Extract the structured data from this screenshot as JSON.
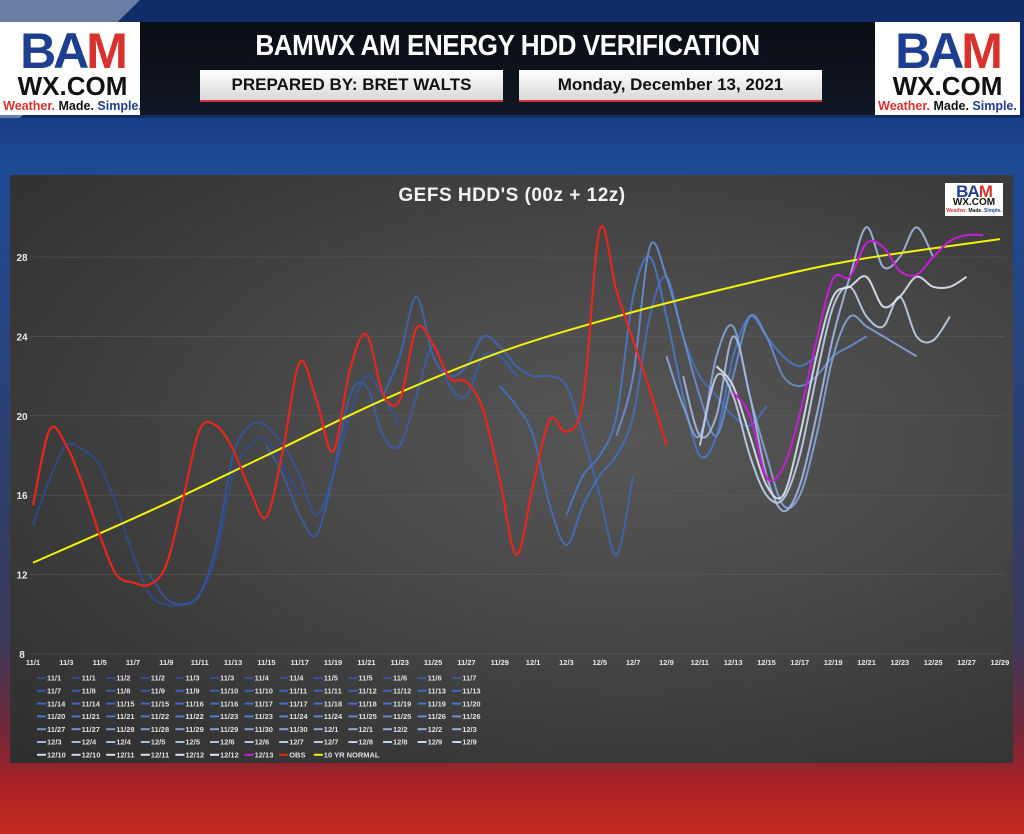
{
  "header": {
    "title": "BAMWX AM ENERGY HDD VERIFICATION",
    "prepared_by": "PREPARED BY: BRET WALTS",
    "date": "Monday, December 13, 2021"
  },
  "logo": {
    "bam_b": "BA",
    "bam_m": "M",
    "wx": "WX.COM",
    "tag_1": "Weather.",
    "tag_2": " Made. ",
    "tag_3": "Simple."
  },
  "colors": {
    "obs": "#e8261c",
    "normal": "#f2f20a",
    "latest_run": "#c21fd6",
    "ensemble_dark": "#2d4c8e",
    "ensemble_mid": "#4a78c8",
    "ensemble_light": "#dfe5f2"
  },
  "chart_data": {
    "type": "line",
    "title": "GEFS HDD'S (00z + 12z)",
    "ylim": [
      8,
      30
    ],
    "yticks": [
      8,
      12,
      16,
      20,
      24,
      28
    ],
    "grid": true,
    "legend_position": "bottom",
    "xticks": [
      "11/1",
      "11/3",
      "11/5",
      "11/7",
      "11/9",
      "11/11",
      "11/13",
      "11/15",
      "11/17",
      "11/19",
      "11/21",
      "11/23",
      "11/25",
      "11/27",
      "11/29",
      "12/1",
      "12/3",
      "12/5",
      "12/7",
      "12/9",
      "12/11",
      "12/13",
      "12/15",
      "12/17",
      "12/19",
      "12/21",
      "12/23",
      "12/25",
      "12/27",
      "12/29"
    ],
    "obs": {
      "name": "OBS",
      "start": "11/1",
      "values": [
        15.5,
        19.3,
        18.5,
        16.5,
        14,
        12,
        11.6,
        11.5,
        12.5,
        15.8,
        19.3,
        19.5,
        18.3,
        16.3,
        14.9,
        18.3,
        22.7,
        20.8,
        18.2,
        22.3,
        24.1,
        21.1,
        20.8,
        24.4,
        23.6,
        21.9,
        21.7,
        20.3,
        16.8,
        13,
        16.5,
        19.8,
        19.2,
        20.8,
        29.4,
        26.3,
        23.8,
        21.3,
        18.5
      ]
    },
    "normal": {
      "name": "10 YR NORMAL",
      "points": [
        [
          "11/1",
          12.6
        ],
        [
          "11/8",
          15.2
        ],
        [
          "11/15",
          18
        ],
        [
          "11/22",
          20.8
        ],
        [
          "11/29",
          23.2
        ],
        [
          "12/6",
          25
        ],
        [
          "12/13",
          26.5
        ],
        [
          "12/20",
          27.8
        ],
        [
          "12/29",
          28.9
        ]
      ]
    },
    "latest": {
      "name": "12/13",
      "start": "12/13",
      "values": [
        21.2,
        20,
        16.9,
        17.4,
        20.1,
        23.8,
        26.9,
        27,
        28.7,
        28.5,
        27.3,
        27.1,
        28,
        28.8,
        29.1,
        29.1
      ]
    },
    "ensembles": [
      {
        "name": "11/1",
        "start": "11/1",
        "values": [
          14.5,
          16.8,
          18.5,
          18.3,
          17.5,
          15.5,
          13,
          11,
          10.5,
          10.5,
          11,
          13,
          17,
          18.5,
          18.8,
          17.5,
          16
        ]
      },
      {
        "name": "11/8",
        "start": "11/8",
        "values": [
          12,
          10.8,
          10.5,
          11,
          13.5,
          18,
          19.5,
          19.5,
          18.5,
          17,
          15,
          17,
          20,
          22,
          21,
          19.5
        ]
      },
      {
        "name": "11/15",
        "start": "11/15",
        "values": [
          18.5,
          17,
          15,
          14,
          17,
          21,
          21.5,
          19,
          18.5,
          21,
          23.5,
          21.5,
          21,
          23,
          23,
          22
        ]
      },
      {
        "name": "11/22",
        "start": "11/22",
        "values": [
          21,
          23,
          26,
          23,
          22,
          22.5,
          24,
          23.5,
          22.5,
          22,
          22,
          21.5,
          19,
          16,
          13,
          17
        ]
      },
      {
        "name": "11/29",
        "start": "11/29",
        "values": [
          21.5,
          20.5,
          19,
          15.5,
          13.5,
          15.5,
          17,
          18,
          20,
          25,
          27,
          24,
          22,
          21,
          20,
          19.5,
          20.5
        ]
      },
      {
        "name": "12/3",
        "start": "12/3",
        "values": [
          15,
          17,
          18,
          20,
          26,
          28,
          25,
          21,
          18,
          19,
          23,
          25,
          24,
          23,
          22.5,
          23
        ]
      },
      {
        "name": "12/6",
        "start": "12/6",
        "values": [
          19,
          22,
          28.5,
          27,
          24,
          21,
          19,
          22,
          25,
          24,
          22,
          21.5,
          22,
          23,
          23.5,
          24
        ]
      },
      {
        "name": "12/9",
        "start": "12/9",
        "values": [
          23,
          20.5,
          19,
          23,
          24.5,
          21,
          18,
          15.5,
          16,
          19,
          23,
          25,
          24.5,
          24,
          23.5,
          23
        ]
      },
      {
        "name": "12/10",
        "start": "12/10",
        "values": [
          22,
          19,
          20,
          24,
          21,
          17,
          15.2,
          16.5,
          20,
          24,
          27,
          29.5,
          27.5,
          28,
          29.5,
          28
        ]
      },
      {
        "name": "12/11",
        "start": "12/11",
        "values": [
          18.5,
          22,
          21,
          18,
          16,
          15.8,
          18,
          22,
          25.5,
          26.5,
          25,
          24.5,
          26,
          24,
          23.8,
          25
        ]
      },
      {
        "name": "12/12",
        "start": "12/12",
        "values": [
          22.5,
          21.5,
          19,
          16.5,
          16,
          19,
          23,
          26,
          26.5,
          27,
          25.5,
          26,
          27,
          26.5,
          26.5,
          27
        ]
      }
    ],
    "legend": [
      "11/1",
      "11/1",
      "11/2",
      "11/2",
      "11/3",
      "11/3",
      "11/4",
      "11/4",
      "11/5",
      "11/5",
      "11/6",
      "11/6",
      "11/7",
      "11/7",
      "11/8",
      "11/8",
      "11/9",
      "11/9",
      "11/10",
      "11/10",
      "11/11",
      "11/11",
      "11/12",
      "11/12",
      "11/13",
      "11/13",
      "11/14",
      "11/14",
      "11/15",
      "11/15",
      "11/16",
      "11/16",
      "11/17",
      "11/17",
      "11/18",
      "11/18",
      "11/19",
      "11/19",
      "11/20",
      "11/20",
      "11/21",
      "11/21",
      "11/22",
      "11/22",
      "11/23",
      "11/23",
      "11/24",
      "11/24",
      "11/25",
      "11/25",
      "11/26",
      "11/26",
      "11/27",
      "11/27",
      "11/28",
      "11/28",
      "11/29",
      "11/29",
      "11/30",
      "11/30",
      "12/1",
      "12/1",
      "12/2",
      "12/2",
      "12/3",
      "12/3",
      "12/4",
      "12/4",
      "12/5",
      "12/5",
      "12/6",
      "12/6",
      "12/7",
      "12/7",
      "12/8",
      "12/8",
      "12/9",
      "12/9",
      "12/10",
      "12/10",
      "12/11",
      "12/11",
      "12/12",
      "12/12",
      "12/13",
      "OBS",
      "10 YR NORMAL"
    ]
  }
}
